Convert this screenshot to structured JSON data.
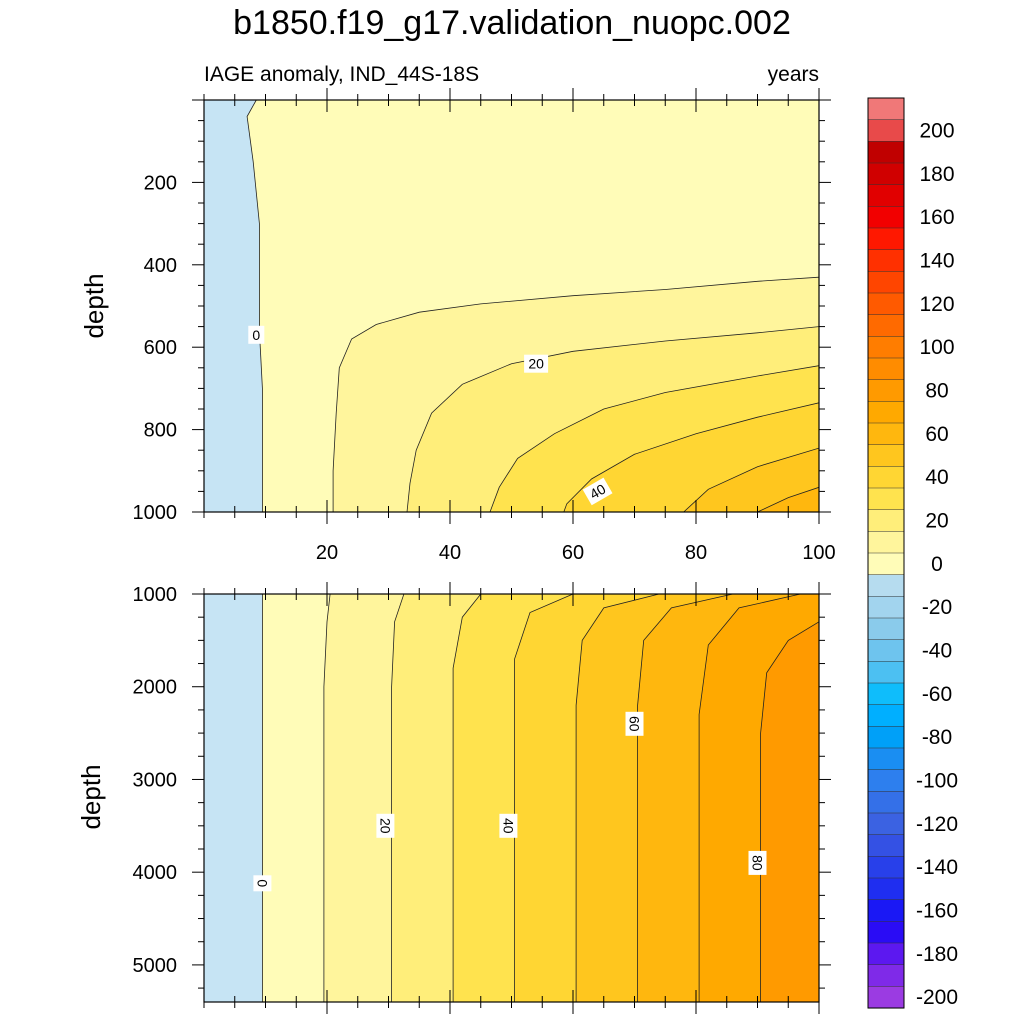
{
  "title": "b1850.f19_g17.validation_nuopc.002",
  "chart_data": [
    {
      "type": "contour",
      "panel": "upper",
      "left_label": "IAGE anomaly, IND_44S-18S",
      "right_label": "years",
      "xlabel": "",
      "ylabel": "depth",
      "xlim": [
        0,
        100
      ],
      "ylim": [
        1000,
        0
      ],
      "xticks": [
        20,
        40,
        60,
        80,
        100
      ],
      "yticks": [
        200,
        400,
        600,
        800,
        1000
      ],
      "contour_interval": 10,
      "contour_lines": [
        {
          "level": 0,
          "points": [
            [
              8.5,
              0
            ],
            [
              7,
              40
            ],
            [
              8,
              150
            ],
            [
              9,
              300
            ],
            [
              9,
              560
            ],
            [
              9.5,
              700
            ],
            [
              9.5,
              1000
            ]
          ]
        },
        {
          "level": 10,
          "points": [
            [
              100,
              430
            ],
            [
              90,
              440
            ],
            [
              75,
              460
            ],
            [
              60,
              475
            ],
            [
              45,
              495
            ],
            [
              35,
              515
            ],
            [
              28,
              545
            ],
            [
              24,
              580
            ],
            [
              22,
              650
            ],
            [
              21.5,
              760
            ],
            [
              21,
              900
            ],
            [
              21,
              1000
            ]
          ]
        },
        {
          "level": 20,
          "points": [
            [
              100,
              550
            ],
            [
              90,
              565
            ],
            [
              75,
              585
            ],
            [
              60,
              610
            ],
            [
              50,
              640
            ],
            [
              42,
              690
            ],
            [
              37,
              760
            ],
            [
              34.5,
              850
            ],
            [
              33.5,
              930
            ],
            [
              33,
              1000
            ]
          ]
        },
        {
          "level": 30,
          "points": [
            [
              100,
              645
            ],
            [
              90,
              670
            ],
            [
              75,
              710
            ],
            [
              65,
              750
            ],
            [
              57,
              810
            ],
            [
              51,
              870
            ],
            [
              48,
              940
            ],
            [
              46.5,
              1000
            ]
          ]
        },
        {
          "level": 40,
          "points": [
            [
              100,
              735
            ],
            [
              90,
              770
            ],
            [
              80,
              810
            ],
            [
              70,
              860
            ],
            [
              63,
              920
            ],
            [
              59,
              980
            ],
            [
              58.5,
              1000
            ]
          ]
        },
        {
          "level": 50,
          "points": [
            [
              100,
              845
            ],
            [
              90,
              890
            ],
            [
              82,
              945
            ],
            [
              78,
              1000
            ]
          ]
        },
        {
          "level": 60,
          "points": [
            [
              100,
              940
            ],
            [
              95,
              965
            ],
            [
              90,
              1000
            ]
          ]
        }
      ],
      "contour_labels": [
        {
          "text": "0",
          "x": 8.5,
          "y": 570
        },
        {
          "text": "20",
          "x": 54,
          "y": 640
        },
        {
          "text": "40",
          "x": 64,
          "y": 950
        }
      ]
    },
    {
      "type": "contour",
      "panel": "lower",
      "xlabel": "",
      "ylabel": "depth",
      "xlim": [
        0,
        100
      ],
      "ylim": [
        5400,
        1000
      ],
      "yticks": [
        1000,
        2000,
        3000,
        4000,
        5000
      ],
      "contour_interval": 10,
      "contour_lines": [
        {
          "level": 0,
          "points": [
            [
              9.5,
              1000
            ],
            [
              9.5,
              5400
            ]
          ]
        },
        {
          "level": 10,
          "points": [
            [
              20.5,
              1000
            ],
            [
              20,
              1300
            ],
            [
              19.5,
              2000
            ],
            [
              19.5,
              5400
            ]
          ]
        },
        {
          "level": 20,
          "points": [
            [
              32.5,
              1000
            ],
            [
              31,
              1300
            ],
            [
              30.5,
              2000
            ],
            [
              30.5,
              5400
            ]
          ]
        },
        {
          "level": 30,
          "points": [
            [
              45,
              1000
            ],
            [
              42,
              1250
            ],
            [
              40.5,
              1800
            ],
            [
              40.5,
              5400
            ]
          ]
        },
        {
          "level": 40,
          "points": [
            [
              60,
              1000
            ],
            [
              53,
              1200
            ],
            [
              50.5,
              1700
            ],
            [
              50.5,
              5400
            ]
          ]
        },
        {
          "level": 50,
          "points": [
            [
              74,
              1000
            ],
            [
              65,
              1150
            ],
            [
              61.5,
              1500
            ],
            [
              60.5,
              2200
            ],
            [
              60.5,
              5400
            ]
          ]
        },
        {
          "level": 60,
          "points": [
            [
              86,
              1000
            ],
            [
              76,
              1150
            ],
            [
              71.5,
              1500
            ],
            [
              70.5,
              2200
            ],
            [
              70.5,
              5400
            ]
          ]
        },
        {
          "level": 70,
          "points": [
            [
              97,
              1000
            ],
            [
              87,
              1150
            ],
            [
              82,
              1550
            ],
            [
              80.5,
              2300
            ],
            [
              80.5,
              5400
            ]
          ]
        },
        {
          "level": 80,
          "points": [
            [
              100,
              1300
            ],
            [
              95,
              1500
            ],
            [
              91.5,
              1850
            ],
            [
              90.5,
              2500
            ],
            [
              90.5,
              5400
            ]
          ]
        }
      ],
      "contour_labels": [
        {
          "text": "0",
          "x": 9.5,
          "y": 4120
        },
        {
          "text": "20",
          "x": 29.5,
          "y": 3500
        },
        {
          "text": "40",
          "x": 49.5,
          "y": 3500
        },
        {
          "text": "60",
          "x": 70,
          "y": 2400
        },
        {
          "text": "80",
          "x": 90,
          "y": 3900
        }
      ]
    }
  ],
  "colorbar": {
    "title": "",
    "min": -200,
    "max": 210,
    "step": 10,
    "label_values": [
      200,
      180,
      160,
      140,
      120,
      100,
      80,
      60,
      40,
      20,
      0,
      -20,
      -40,
      -60,
      -80,
      -100,
      -120,
      -140,
      -160,
      -180,
      -200
    ]
  }
}
